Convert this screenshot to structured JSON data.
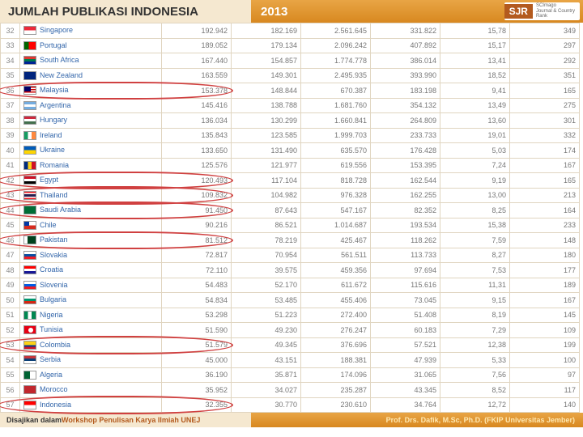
{
  "header": {
    "title": "JUMLAH PUBLIKASI INDONESIA",
    "year": "2013",
    "badge": "SJR",
    "badge_sub1": "SCImago",
    "badge_sub2": "Journal & Country",
    "badge_sub3": "Rank"
  },
  "rows": [
    {
      "rank": "32",
      "flag": "sg",
      "country": "Singapore",
      "c1": "192.942",
      "c2": "182.169",
      "c3": "2.561.645",
      "c4": "331.822",
      "c5": "15,78",
      "c6": "349",
      "circled": false
    },
    {
      "rank": "33",
      "flag": "pt",
      "country": "Portugal",
      "c1": "189.052",
      "c2": "179.134",
      "c3": "2.096.242",
      "c4": "407.892",
      "c5": "15,17",
      "c6": "297",
      "circled": false
    },
    {
      "rank": "34",
      "flag": "za",
      "country": "South Africa",
      "c1": "167.440",
      "c2": "154.857",
      "c3": "1.774.778",
      "c4": "386.014",
      "c5": "13,41",
      "c6": "292",
      "circled": false
    },
    {
      "rank": "35",
      "flag": "nz",
      "country": "New Zealand",
      "c1": "163.559",
      "c2": "149.301",
      "c3": "2.495.935",
      "c4": "393.990",
      "c5": "18,52",
      "c6": "351",
      "circled": false
    },
    {
      "rank": "36",
      "flag": "my",
      "country": "Malaysia",
      "c1": "153.378",
      "c2": "148.844",
      "c3": "670.387",
      "c4": "183.198",
      "c5": "9,41",
      "c6": "165",
      "circled": true
    },
    {
      "rank": "37",
      "flag": "ar",
      "country": "Argentina",
      "c1": "145.416",
      "c2": "138.788",
      "c3": "1.681.760",
      "c4": "354.132",
      "c5": "13,49",
      "c6": "275",
      "circled": false
    },
    {
      "rank": "38",
      "flag": "hu",
      "country": "Hungary",
      "c1": "136.034",
      "c2": "130.299",
      "c3": "1.660.841",
      "c4": "264.809",
      "c5": "13,60",
      "c6": "301",
      "circled": false
    },
    {
      "rank": "39",
      "flag": "ie",
      "country": "Ireland",
      "c1": "135.843",
      "c2": "123.585",
      "c3": "1.999.703",
      "c4": "233.733",
      "c5": "19,01",
      "c6": "332",
      "circled": false
    },
    {
      "rank": "40",
      "flag": "ua",
      "country": "Ukraine",
      "c1": "133.650",
      "c2": "131.490",
      "c3": "635.570",
      "c4": "176.428",
      "c5": "5,03",
      "c6": "174",
      "circled": false
    },
    {
      "rank": "41",
      "flag": "ro",
      "country": "Romania",
      "c1": "125.576",
      "c2": "121.977",
      "c3": "619.556",
      "c4": "153.395",
      "c5": "7,24",
      "c6": "167",
      "circled": false
    },
    {
      "rank": "42",
      "flag": "eg",
      "country": "Egypt",
      "c1": "120.493",
      "c2": "117.104",
      "c3": "818.728",
      "c4": "162.544",
      "c5": "9,19",
      "c6": "165",
      "circled": true
    },
    {
      "rank": "43",
      "flag": "th",
      "country": "Thailand",
      "c1": "109.832",
      "c2": "104.982",
      "c3": "976.328",
      "c4": "162.255",
      "c5": "13,00",
      "c6": "213",
      "circled": true
    },
    {
      "rank": "44",
      "flag": "sa",
      "country": "Saudi Arabia",
      "c1": "91.450",
      "c2": "87.643",
      "c3": "547.167",
      "c4": "82.352",
      "c5": "8,25",
      "c6": "164",
      "circled": true
    },
    {
      "rank": "45",
      "flag": "cl",
      "country": "Chile",
      "c1": "90.216",
      "c2": "86.521",
      "c3": "1.014.687",
      "c4": "193.534",
      "c5": "15,38",
      "c6": "233",
      "circled": false
    },
    {
      "rank": "46",
      "flag": "pk",
      "country": "Pakistan",
      "c1": "81.512",
      "c2": "78.219",
      "c3": "425.467",
      "c4": "118.262",
      "c5": "7,59",
      "c6": "148",
      "circled": true
    },
    {
      "rank": "47",
      "flag": "sk",
      "country": "Slovakia",
      "c1": "72.817",
      "c2": "70.954",
      "c3": "561.511",
      "c4": "113.733",
      "c5": "8,27",
      "c6": "180",
      "circled": false
    },
    {
      "rank": "48",
      "flag": "hr",
      "country": "Croatia",
      "c1": "72.110",
      "c2": "39.575",
      "c3": "459.356",
      "c4": "97.694",
      "c5": "7,53",
      "c6": "177",
      "circled": false
    },
    {
      "rank": "49",
      "flag": "si",
      "country": "Slovenia",
      "c1": "54.483",
      "c2": "52.170",
      "c3": "611.672",
      "c4": "115.616",
      "c5": "11,31",
      "c6": "189",
      "circled": false
    },
    {
      "rank": "50",
      "flag": "bg",
      "country": "Bulgaria",
      "c1": "54.834",
      "c2": "53.485",
      "c3": "455.406",
      "c4": "73.045",
      "c5": "9,15",
      "c6": "167",
      "circled": false
    },
    {
      "rank": "51",
      "flag": "ng",
      "country": "Nigeria",
      "c1": "53.298",
      "c2": "51.223",
      "c3": "272.400",
      "c4": "51.408",
      "c5": "8,19",
      "c6": "145",
      "circled": false
    },
    {
      "rank": "52",
      "flag": "tn",
      "country": "Tunisia",
      "c1": "51.590",
      "c2": "49.230",
      "c3": "276.247",
      "c4": "60.183",
      "c5": "7,29",
      "c6": "109",
      "circled": false
    },
    {
      "rank": "53",
      "flag": "co",
      "country": "Colombia",
      "c1": "51.579",
      "c2": "49.345",
      "c3": "376.696",
      "c4": "57.521",
      "c5": "12,38",
      "c6": "199",
      "circled": true
    },
    {
      "rank": "54",
      "flag": "rs",
      "country": "Serbia",
      "c1": "45.000",
      "c2": "43.151",
      "c3": "188.381",
      "c4": "47.939",
      "c5": "5,33",
      "c6": "100",
      "circled": false
    },
    {
      "rank": "55",
      "flag": "dz",
      "country": "Algeria",
      "c1": "36.190",
      "c2": "35.871",
      "c3": "174.096",
      "c4": "31.065",
      "c5": "7,56",
      "c6": "97",
      "circled": false
    },
    {
      "rank": "56",
      "flag": "ma",
      "country": "Morocco",
      "c1": "35.952",
      "c2": "34.027",
      "c3": "235.287",
      "c4": "43.345",
      "c5": "8,52",
      "c6": "117",
      "circled": false
    },
    {
      "rank": "57",
      "flag": "id",
      "country": "Indonesia",
      "c1": "32.355",
      "c2": "30.770",
      "c3": "230.610",
      "c4": "34.764",
      "c5": "12,72",
      "c6": "140",
      "circled": true
    }
  ],
  "footer": {
    "left_prefix": "Disajikan dalam",
    "left_main": "  Workshop Penulisan Karya Ilmiah  UNEJ",
    "right": "Prof. Drs. Dafik, M.Sc, Ph.D. (FKIP Universitas Jember)"
  }
}
